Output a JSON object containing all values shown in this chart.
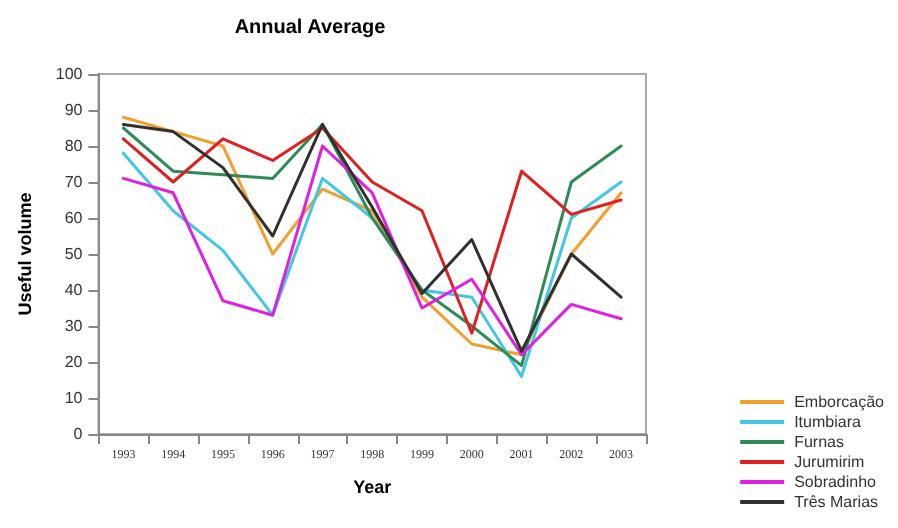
{
  "chart_data": {
    "type": "line",
    "title": "Annual Average",
    "xlabel": "Year",
    "ylabel": "Useful volume",
    "categories": [
      "1993",
      "1994",
      "1995",
      "1996",
      "1997",
      "1998",
      "1999",
      "2000",
      "2001",
      "2002",
      "2003"
    ],
    "series": [
      {
        "name": "Emborcação",
        "color": "#f0a030",
        "values": [
          88,
          84,
          80,
          50,
          68,
          62,
          38,
          25,
          22,
          50,
          67
        ]
      },
      {
        "name": "Itumbiara",
        "color": "#40c8e0",
        "values": [
          78,
          62,
          51,
          33,
          71,
          60,
          40,
          38,
          16,
          60,
          70
        ]
      },
      {
        "name": "Furnas",
        "color": "#2e8b57",
        "values": [
          85,
          73,
          72,
          71,
          86,
          60,
          40,
          30,
          19,
          70,
          80
        ]
      },
      {
        "name": "Jurumirim",
        "color": "#e02020",
        "values": [
          82,
          70,
          82,
          76,
          85,
          70,
          62,
          28,
          73,
          61,
          65
        ]
      },
      {
        "name": "Sobradinho",
        "color": "#e020e0",
        "values": [
          71,
          67,
          37,
          33,
          80,
          67,
          35,
          43,
          22,
          36,
          32
        ]
      },
      {
        "name": "Três Marias",
        "color": "#303030",
        "values": [
          86,
          84,
          74,
          55,
          86,
          63,
          39,
          54,
          23,
          50,
          38
        ]
      }
    ],
    "ylim": [
      0,
      100
    ],
    "yticks": [
      0,
      10,
      20,
      30,
      40,
      50,
      60,
      70,
      80,
      90,
      100
    ],
    "grid": false,
    "legend": "bottom right",
    "marker": "none",
    "line_style": "solid"
  }
}
